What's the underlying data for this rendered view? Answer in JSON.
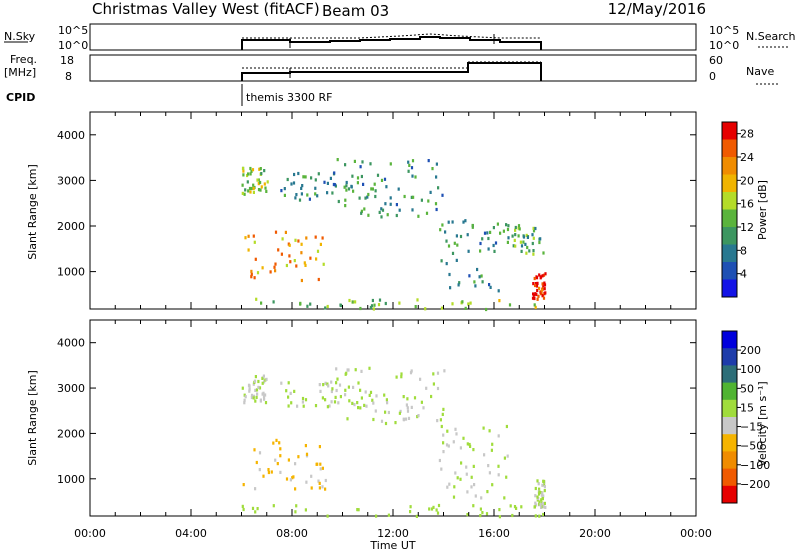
{
  "header": {
    "title": "Christmas Valley West (fitACF)",
    "beam": "Beam 03",
    "date": "12/May/2016"
  },
  "side_labels": {
    "nsky": "N.Sky",
    "freq_line1": "Freq.",
    "freq_line2": "[MHz]",
    "cpid": "CPID",
    "nsearch": "N.Search",
    "nave": "Nave"
  },
  "cpid_value": "themis 3300 RF",
  "noise_panel": {
    "left_ticks": [
      "10^5",
      "10^0"
    ],
    "right_ticks": [
      "10^5",
      "10^0"
    ]
  },
  "freq_panel": {
    "left_ticks": [
      "18",
      "8"
    ],
    "right_ticks": [
      "60",
      "0"
    ]
  },
  "colors": {
    "power_scale": [
      "#1414e6",
      "#1e50b4",
      "#287890",
      "#3c9660",
      "#5ab43c",
      "#b4dc28",
      "#f0b400",
      "#f08c00",
      "#f05a00",
      "#e60000"
    ],
    "velocity_scale": [
      "#0000dc",
      "#1e3caa",
      "#2d6e78",
      "#50b432",
      "#a0dc3c",
      "#c8c8c8",
      "#f5b400",
      "#f08c00",
      "#f05a00",
      "#e60000"
    ]
  },
  "chart_data": [
    {
      "type": "heatmap",
      "title": "",
      "xlabel": "",
      "ylabel": "Slant Range [km]",
      "xlim": [
        "00:00",
        "00:00"
      ],
      "ylim": [
        180,
        4500
      ],
      "x_ticks": [
        "00:00",
        "04:00",
        "08:00",
        "12:00",
        "16:00",
        "20:00",
        "00:00"
      ],
      "y_ticks": [
        "1000",
        "2000",
        "3000",
        "4000"
      ],
      "colorbar": {
        "label": "Power [dB]",
        "ticks": [
          "4",
          "8",
          "12",
          "16",
          "20",
          "24",
          "28"
        ],
        "range": [
          0,
          30
        ]
      },
      "data_window": {
        "start_hour": 6,
        "end_hour": 18
      },
      "echo_regions": [
        {
          "name": "near-range band",
          "t_start": 6.0,
          "t_end": 18.0,
          "range_km": [
            200,
            450
          ],
          "power_db": 14
        },
        {
          "name": "sloped strong echo",
          "t_start": 6.0,
          "t_end": 9.3,
          "range_km": [
            800,
            1900
          ],
          "power_db": 22
        },
        {
          "name": "early far band",
          "t_start": 6.0,
          "t_end": 7.0,
          "range_km": [
            2700,
            3300
          ],
          "power_db": 16
        },
        {
          "name": "mid far patch",
          "t_start": 7.5,
          "t_end": 11.0,
          "range_km": [
            2600,
            3200
          ],
          "power_db": 10
        },
        {
          "name": "arc feature",
          "t_start": 9.5,
          "t_end": 14.0,
          "range_km": [
            2200,
            3500
          ],
          "power_db": 10
        },
        {
          "name": "afternoon cluster",
          "t_start": 13.8,
          "t_end": 16.5,
          "range_km": [
            600,
            2200
          ],
          "power_db": 10
        },
        {
          "name": "late strong echo",
          "t_start": 17.5,
          "t_end": 18.0,
          "range_km": [
            400,
            1000
          ],
          "power_db": 28
        },
        {
          "name": "late mid band",
          "t_start": 16.5,
          "t_end": 18.0,
          "range_km": [
            1400,
            2100
          ],
          "power_db": 12
        }
      ]
    },
    {
      "type": "heatmap",
      "title": "",
      "xlabel": "Time UT",
      "ylabel": "Slant Range [km]",
      "xlim": [
        "00:00",
        "00:00"
      ],
      "ylim": [
        180,
        4500
      ],
      "x_ticks": [
        "00:00",
        "04:00",
        "08:00",
        "12:00",
        "16:00",
        "20:00",
        "00:00"
      ],
      "y_ticks": [
        "1000",
        "2000",
        "3000",
        "4000"
      ],
      "colorbar": {
        "label": "Velocity [m s⁻¹]",
        "ticks": [
          "200",
          "100",
          "50",
          "15",
          "−15",
          "−50",
          "−100",
          "−200"
        ],
        "range": [
          -250,
          250
        ]
      },
      "data_window": {
        "start_hour": 6,
        "end_hour": 18
      },
      "echo_regions": [
        {
          "name": "near-range band",
          "t_start": 6.0,
          "t_end": 18.0,
          "range_km": [
            200,
            450
          ],
          "velocity": 20
        },
        {
          "name": "sloped echo",
          "t_start": 6.0,
          "t_end": 9.3,
          "range_km": [
            800,
            1900
          ],
          "velocity": -60
        },
        {
          "name": "early far band",
          "t_start": 6.0,
          "t_end": 7.0,
          "range_km": [
            2700,
            3300
          ],
          "velocity": 0
        },
        {
          "name": "mid far patch",
          "t_start": 7.5,
          "t_end": 11.0,
          "range_km": [
            2600,
            3200
          ],
          "velocity": 5
        },
        {
          "name": "arc feature",
          "t_start": 9.5,
          "t_end": 14.0,
          "range_km": [
            2200,
            3500
          ],
          "velocity": 0
        },
        {
          "name": "afternoon cluster",
          "t_start": 13.8,
          "t_end": 16.5,
          "range_km": [
            600,
            2200
          ],
          "velocity": 0
        },
        {
          "name": "late echo",
          "t_start": 17.5,
          "t_end": 18.0,
          "range_km": [
            400,
            1000
          ],
          "velocity": 0
        }
      ]
    }
  ]
}
